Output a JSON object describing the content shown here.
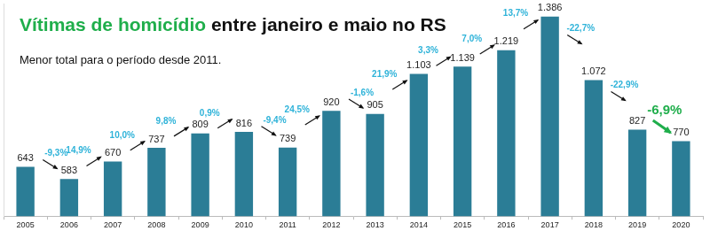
{
  "chart_data": {
    "type": "bar",
    "title": [
      "Vítimas de homicídio",
      "entre janeiro e maio no RS"
    ],
    "subtitle": "Menor total para o período desde 2011.",
    "categories": [
      "2005",
      "2006",
      "2007",
      "2008",
      "2009",
      "2010",
      "2011",
      "2012",
      "2013",
      "2014",
      "2015",
      "2016",
      "2017",
      "2018",
      "2019",
      "2020"
    ],
    "values": [
      643,
      583,
      670,
      737,
      809,
      816,
      739,
      920,
      905,
      1103,
      1139,
      1219,
      1386,
      1072,
      827,
      770
    ],
    "value_labels": [
      "643",
      "583",
      "670",
      "737",
      "809",
      "816",
      "739",
      "920",
      "905",
      "1.103",
      "1.139",
      "1.219",
      "1.386",
      "1.072",
      "827",
      "770"
    ],
    "annotations": [
      null,
      "-9,3%",
      "14,9%",
      "10,0%",
      "9,8%",
      "0,9%",
      "-9,4%",
      "24,5%",
      "-1,6%",
      "21,9%",
      "3,3%",
      "7,0%",
      "13,7%",
      "-22,7%",
      "-22,9%",
      "-6,9%"
    ],
    "color": "#2b7d96",
    "ylim": [
      400,
      1450
    ],
    "grid": false,
    "data_labels": true,
    "tick_labels": "x"
  }
}
